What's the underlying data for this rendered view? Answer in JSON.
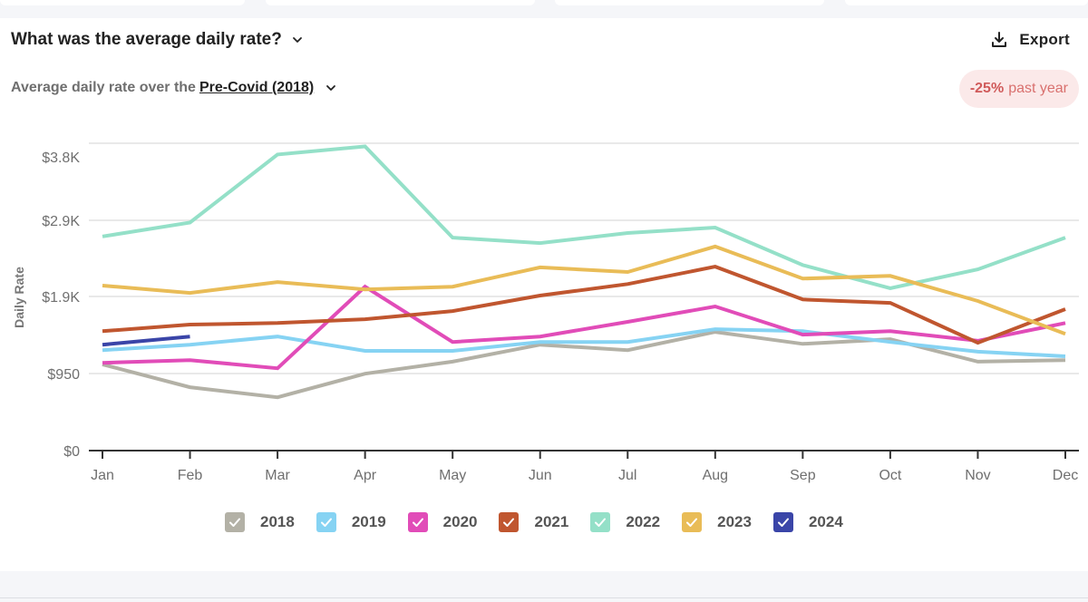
{
  "header": {
    "title": "What was the average daily rate?",
    "subtitle_prefix": "Average daily rate over the",
    "comparison_period": "Pre-Covid (2018)",
    "export_label": "Export",
    "badge_value": "-25%",
    "badge_text": "past year"
  },
  "icons": {
    "title_chevron": "chevron-down-icon",
    "subtitle_chevron": "chevron-down-icon",
    "export": "download-icon",
    "legend_check": "checkmark-icon"
  },
  "colors": {
    "2018": "#b3b1a6",
    "2019": "#86d3f3",
    "2020": "#e14cb8",
    "2021": "#c0562f",
    "2022": "#94e0c8",
    "2023": "#e9bc57",
    "2024": "#3a45a8",
    "badge_text": "#d05a5a",
    "badge_bg": "#fbe9e9"
  },
  "chart_data": {
    "type": "line",
    "title": "What was the average daily rate?",
    "xlabel": "",
    "ylabel": "Daily Rate",
    "categories": [
      "Jan",
      "Feb",
      "Mar",
      "Apr",
      "May",
      "Jun",
      "Jul",
      "Aug",
      "Sep",
      "Oct",
      "Nov",
      "Dec"
    ],
    "y_ticks": [
      0,
      950,
      1900,
      2900,
      3800
    ],
    "y_tick_labels": [
      "$0",
      "$950",
      "$1.9K",
      "$2.9K",
      "$3.8K"
    ],
    "ylim": [
      0,
      3800
    ],
    "grid": true,
    "legend_position": "bottom",
    "series": [
      {
        "name": "2018",
        "checked": true,
        "values": [
          1115,
          820,
          690,
          995,
          1150,
          1370,
          1300,
          1535,
          1380,
          1440,
          1150,
          1170
        ]
      },
      {
        "name": "2019",
        "checked": true,
        "values": [
          1300,
          1370,
          1475,
          1290,
          1290,
          1405,
          1405,
          1570,
          1545,
          1405,
          1280,
          1220
        ]
      },
      {
        "name": "2020",
        "checked": true,
        "values": [
          1135,
          1170,
          1065,
          2120,
          1405,
          1475,
          1665,
          1865,
          1500,
          1545,
          1420,
          1650
        ]
      },
      {
        "name": "2021",
        "checked": true,
        "values": [
          1545,
          1630,
          1650,
          1700,
          1805,
          2005,
          2155,
          2380,
          1955,
          1910,
          1395,
          1830
        ]
      },
      {
        "name": "2022",
        "checked": true,
        "values": [
          2770,
          2950,
          3830,
          3935,
          2755,
          2685,
          2815,
          2885,
          2400,
          2100,
          2345,
          2755
        ]
      },
      {
        "name": "2023",
        "checked": true,
        "values": [
          2135,
          2040,
          2180,
          2085,
          2120,
          2370,
          2310,
          2640,
          2225,
          2260,
          1935,
          1510
        ]
      },
      {
        "name": "2024",
        "checked": true,
        "values": [
          1370,
          1475
        ]
      }
    ]
  }
}
